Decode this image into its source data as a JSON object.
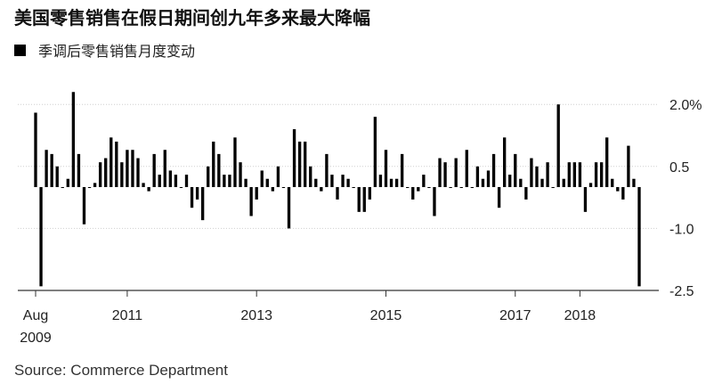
{
  "title": "美国零售销售在假日期间创九年多来最大降幅",
  "legend": {
    "label": "季调后零售销售月度变动"
  },
  "source": "Source: Commerce Department",
  "colors": {
    "bars": "#000000",
    "grid": "#cfcfcf",
    "axis": "#333333"
  },
  "chart_data": {
    "type": "bar",
    "title": "美国零售销售在假日期间创九年多来最大降幅",
    "legend_entries": [
      "季调后零售销售月度变动"
    ],
    "legend_position": "top-left",
    "y_axis_position": "right",
    "grid": true,
    "ylim": [
      -2.5,
      2.5
    ],
    "y_ticks": [
      2.0,
      0.5,
      -1.0,
      -2.5
    ],
    "y_tick_labels": [
      "2.0%",
      "0.5",
      "-1.0",
      "-2.5"
    ],
    "x_start": "2009-08",
    "x_end": "2018-12",
    "x_tick_labels": [
      {
        "date": "2009-08",
        "label": "Aug",
        "sublabel": "2009"
      },
      {
        "date": "2011-01",
        "label": "2011"
      },
      {
        "date": "2013-01",
        "label": "2013"
      },
      {
        "date": "2015-01",
        "label": "2015"
      },
      {
        "date": "2017-01",
        "label": "2017"
      },
      {
        "date": "2018-01",
        "label": "2018"
      }
    ],
    "series": [
      {
        "values": [
          1.8,
          -2.4,
          0.9,
          0.8,
          0.5,
          0.0,
          0.2,
          2.3,
          0.8,
          -0.9,
          0.0,
          0.1,
          0.6,
          0.7,
          1.2,
          1.1,
          0.6,
          0.9,
          0.9,
          0.7,
          0.1,
          -0.1,
          0.8,
          0.3,
          0.9,
          0.4,
          0.3,
          0.0,
          0.3,
          -0.5,
          -0.3,
          -0.8,
          0.5,
          1.1,
          0.8,
          0.3,
          0.3,
          1.2,
          0.6,
          0.2,
          -0.7,
          -0.3,
          0.4,
          0.2,
          -0.1,
          0.5,
          0.0,
          -1.0,
          1.4,
          1.1,
          1.1,
          0.5,
          0.2,
          -0.1,
          0.8,
          0.3,
          -0.3,
          0.3,
          0.2,
          0.0,
          -0.6,
          -0.6,
          -0.3,
          1.7,
          0.3,
          0.9,
          0.2,
          0.2,
          0.8,
          0.0,
          -0.3,
          -0.1,
          0.3,
          0.0,
          -0.7,
          0.7,
          0.6,
          0.0,
          0.7,
          0.0,
          0.9,
          0.0,
          0.5,
          0.2,
          0.4,
          0.8,
          -0.5,
          1.2,
          0.3,
          0.8,
          0.2,
          -0.3,
          0.7,
          0.5,
          0.2,
          0.6,
          0.0,
          2.0,
          0.2,
          0.6,
          0.6,
          0.6,
          -0.6,
          0.1,
          0.6,
          0.6,
          1.2,
          0.2,
          -0.1,
          -0.3,
          1.0,
          0.2,
          -2.4
        ]
      }
    ]
  }
}
